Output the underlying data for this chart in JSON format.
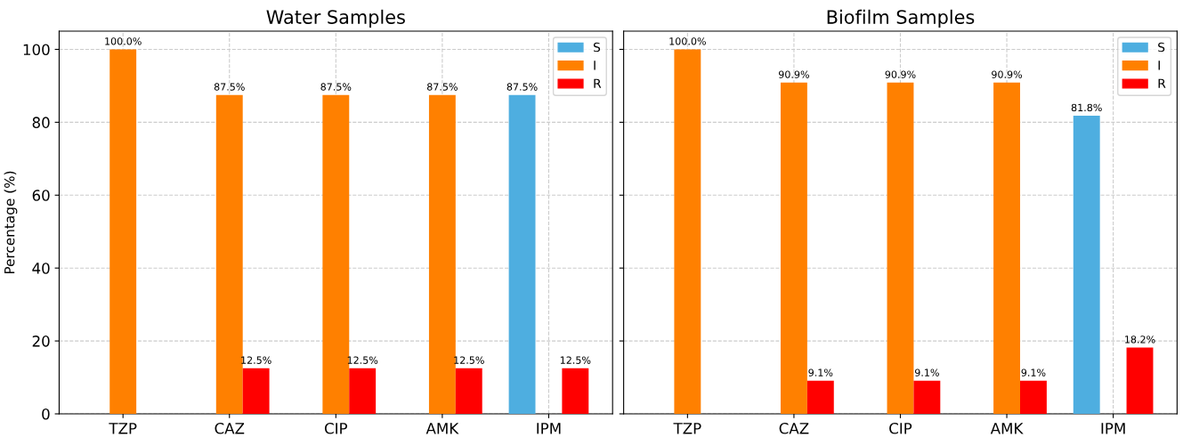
{
  "chart_data": [
    {
      "type": "bar",
      "title": "Water Samples",
      "ylabel": "Percentage (%)",
      "categories": [
        "TZP",
        "CAZ",
        "CIP",
        "AMK",
        "IPM"
      ],
      "series": [
        {
          "name": "S",
          "color": "#4eaee0",
          "values": [
            null,
            null,
            null,
            null,
            87.5
          ],
          "value_labels": [
            null,
            null,
            null,
            null,
            "87.5%"
          ]
        },
        {
          "name": "I",
          "color": "#ff8000",
          "values": [
            100,
            87.5,
            87.5,
            87.5,
            null
          ],
          "value_labels": [
            "100.0%",
            "87.5%",
            "87.5%",
            "87.5%",
            null
          ]
        },
        {
          "name": "R",
          "color": "#ff0000",
          "values": [
            null,
            12.5,
            12.5,
            12.5,
            12.5
          ],
          "value_labels": [
            null,
            "12.5%",
            "12.5%",
            "12.5%",
            "12.5%"
          ]
        }
      ],
      "ylim": [
        0,
        105
      ],
      "yticks": [
        0,
        20,
        40,
        60,
        80,
        100
      ],
      "grid": true,
      "legend": "top right"
    },
    {
      "type": "bar",
      "title": "Biofilm Samples",
      "categories": [
        "TZP",
        "CAZ",
        "CIP",
        "AMK",
        "IPM"
      ],
      "series": [
        {
          "name": "S",
          "color": "#4eaee0",
          "values": [
            null,
            null,
            null,
            null,
            81.8
          ],
          "value_labels": [
            null,
            null,
            null,
            null,
            "81.8%"
          ]
        },
        {
          "name": "I",
          "color": "#ff8000",
          "values": [
            100,
            90.9,
            90.9,
            90.9,
            null
          ],
          "value_labels": [
            "100.0%",
            "90.9%",
            "90.9%",
            "90.9%",
            null
          ]
        },
        {
          "name": "R",
          "color": "#ff0000",
          "values": [
            null,
            9.1,
            9.1,
            9.1,
            18.2
          ],
          "value_labels": [
            null,
            "9.1%",
            "9.1%",
            "9.1%",
            "18.2%"
          ]
        }
      ],
      "ylim": [
        0,
        105
      ],
      "yticks": [
        0,
        20,
        40,
        60,
        80,
        100
      ],
      "tick_labels": "x",
      "grid": true,
      "legend": "top right"
    }
  ]
}
